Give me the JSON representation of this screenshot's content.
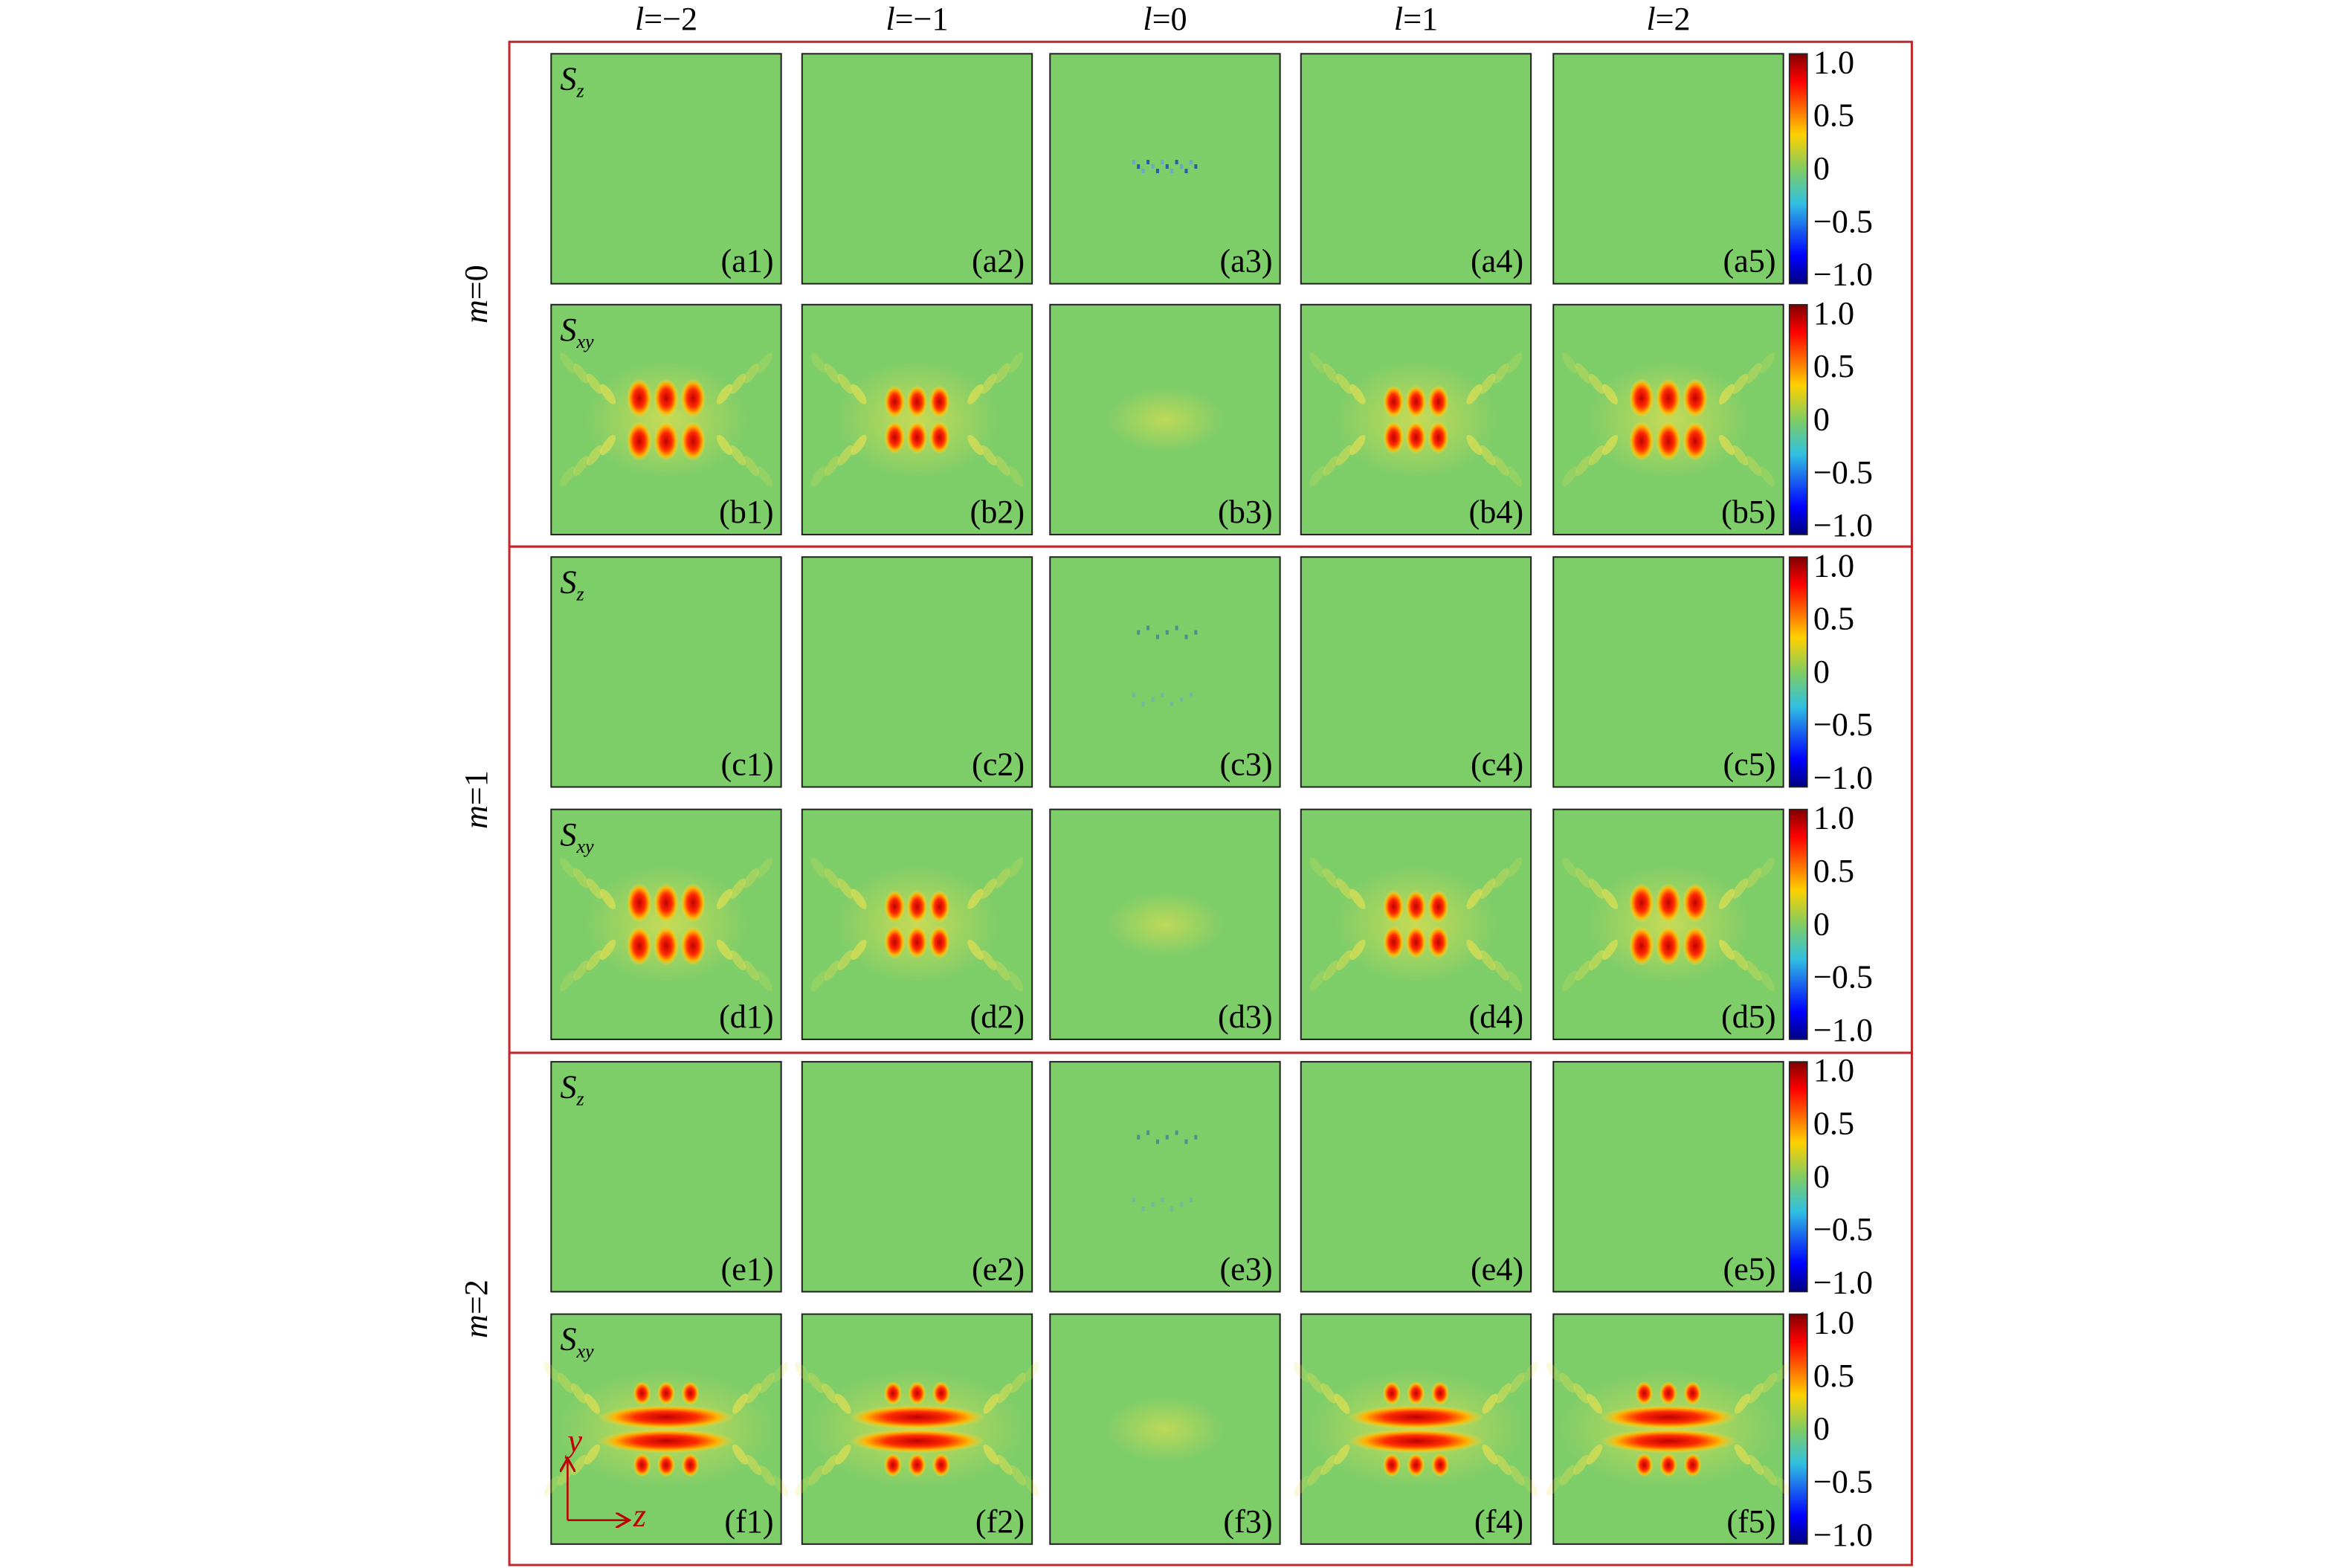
{
  "column_headers": [
    {
      "symbol": "l",
      "rest": "=−2"
    },
    {
      "symbol": "l",
      "rest": "=−1"
    },
    {
      "symbol": "l",
      "rest": "=0"
    },
    {
      "symbol": "l",
      "rest": "=1"
    },
    {
      "symbol": "l",
      "rest": "=2"
    }
  ],
  "row_groups": [
    {
      "label": {
        "symbol": "m",
        "rest": "=0"
      },
      "rows": [
        {
          "symbol": "S",
          "subscript": "z",
          "panels": [
            "(a1)",
            "(a2)",
            "(a3)",
            "(a4)",
            "(a5)"
          ]
        },
        {
          "symbol": "S",
          "subscript": "xy",
          "panels": [
            "(b1)",
            "(b2)",
            "(b3)",
            "(b4)",
            "(b5)"
          ]
        }
      ]
    },
    {
      "label": {
        "symbol": "m",
        "rest": "=1"
      },
      "rows": [
        {
          "symbol": "S",
          "subscript": "z",
          "panels": [
            "(c1)",
            "(c2)",
            "(c3)",
            "(c4)",
            "(c5)"
          ]
        },
        {
          "symbol": "S",
          "subscript": "xy",
          "panels": [
            "(d1)",
            "(d2)",
            "(d3)",
            "(d4)",
            "(d5)"
          ]
        }
      ]
    },
    {
      "label": {
        "symbol": "m",
        "rest": "=2"
      },
      "rows": [
        {
          "symbol": "S",
          "subscript": "z",
          "panels": [
            "(e1)",
            "(e2)",
            "(e3)",
            "(e4)",
            "(e5)"
          ]
        },
        {
          "symbol": "S",
          "subscript": "xy",
          "panels": [
            "(f1)",
            "(f2)",
            "(f3)",
            "(f4)",
            "(f5)"
          ]
        }
      ]
    }
  ],
  "colorbar_ticks": [
    "1.0",
    "0.5",
    "0",
    "−0.5",
    "−1.0"
  ],
  "axes": {
    "vertical": "y",
    "horizontal": "z"
  }
}
